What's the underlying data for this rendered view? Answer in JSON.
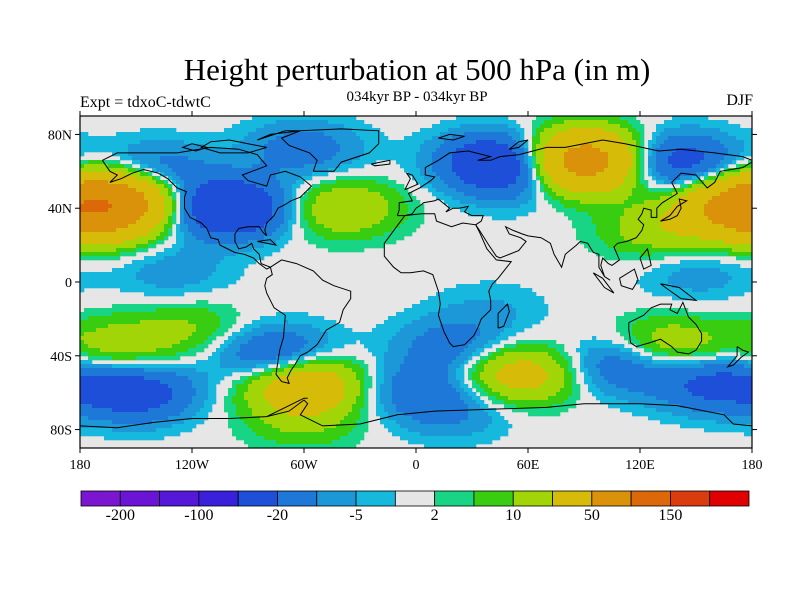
{
  "title": "Height perturbation at 500 hPa (in m)",
  "subtitle": "034kyr BP - 034kyr BP",
  "left_label": "Expt = tdxoC-tdwtC",
  "right_label": "DJF",
  "map": {
    "lon_range": [
      -180,
      180
    ],
    "lat_range": [
      -90,
      90
    ],
    "lat_ticks": [
      {
        "value": 80,
        "label": "80N"
      },
      {
        "value": 40,
        "label": "40N"
      },
      {
        "value": 0,
        "label": "0"
      },
      {
        "value": -40,
        "label": "40S"
      },
      {
        "value": -80,
        "label": "80S"
      }
    ],
    "lon_ticks": [
      {
        "value": -180,
        "label": "180"
      },
      {
        "value": -120,
        "label": "120W"
      },
      {
        "value": -60,
        "label": "60W"
      },
      {
        "value": 0,
        "label": "0"
      },
      {
        "value": 60,
        "label": "60E"
      },
      {
        "value": 120,
        "label": "120E"
      },
      {
        "value": 180,
        "label": "180"
      }
    ],
    "fields": [
      {
        "lon": -160,
        "lat": 45,
        "value": 60
      },
      {
        "lon": -172,
        "lat": 35,
        "value": 35
      },
      {
        "lon": -100,
        "lat": 40,
        "value": -45
      },
      {
        "lon": -140,
        "lat": 60,
        "value": -18
      },
      {
        "lon": -40,
        "lat": 40,
        "value": 20
      },
      {
        "lon": -60,
        "lat": 72,
        "value": -15
      },
      {
        "lon": 45,
        "lat": 65,
        "value": -40
      },
      {
        "lon": 60,
        "lat": 55,
        "value": -12
      },
      {
        "lon": 90,
        "lat": 68,
        "value": 50
      },
      {
        "lon": 85,
        "lat": 60,
        "value": 30
      },
      {
        "lon": 140,
        "lat": 65,
        "value": -30
      },
      {
        "lon": 170,
        "lat": 42,
        "value": 40
      },
      {
        "lon": 130,
        "lat": 28,
        "value": 15
      },
      {
        "lon": -130,
        "lat": 5,
        "value": -8
      },
      {
        "lon": 150,
        "lat": 5,
        "value": -8
      },
      {
        "lon": -160,
        "lat": -35,
        "value": 15
      },
      {
        "lon": -120,
        "lat": -25,
        "value": 10
      },
      {
        "lon": -150,
        "lat": -60,
        "value": -30
      },
      {
        "lon": -75,
        "lat": -40,
        "value": -25
      },
      {
        "lon": -60,
        "lat": -55,
        "value": 40
      },
      {
        "lon": -60,
        "lat": -75,
        "value": 10
      },
      {
        "lon": 20,
        "lat": -35,
        "value": -15
      },
      {
        "lon": 0,
        "lat": -58,
        "value": -15
      },
      {
        "lon": 55,
        "lat": -50,
        "value": 30
      },
      {
        "lon": 110,
        "lat": -45,
        "value": -20
      },
      {
        "lon": 135,
        "lat": -35,
        "value": 20
      },
      {
        "lon": 160,
        "lat": -55,
        "value": -25
      },
      {
        "lon": 20,
        "lat": -70,
        "value": -10
      },
      {
        "lon": 40,
        "lat": -15,
        "value": -5
      }
    ]
  },
  "colorbar": {
    "colors": [
      "#7A16D0",
      "#6A14D6",
      "#5518D8",
      "#3A20DA",
      "#1E4FD8",
      "#1E78D8",
      "#1C98D8",
      "#16B9DD",
      "#E6E6E6",
      "#18D586",
      "#39CD12",
      "#A2D507",
      "#D6BC08",
      "#DA920A",
      "#DB6809",
      "#DB3C0E",
      "#E00000"
    ],
    "labels": [
      {
        "text": "-200",
        "edge": 1
      },
      {
        "text": "-100",
        "edge": 3
      },
      {
        "text": "-20",
        "edge": 5
      },
      {
        "text": "-5",
        "edge": 7
      },
      {
        "text": "2",
        "edge": 9
      },
      {
        "text": "10",
        "edge": 11
      },
      {
        "text": "50",
        "edge": 13
      },
      {
        "text": "150",
        "edge": 15
      }
    ],
    "thresholds": [
      -200,
      -150,
      -100,
      -50,
      -20,
      -10,
      -5,
      -2,
      2,
      5,
      10,
      20,
      50,
      100,
      150,
      200
    ]
  }
}
